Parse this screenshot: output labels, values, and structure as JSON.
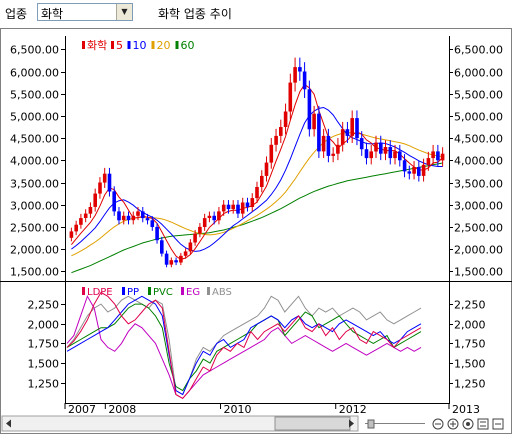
{
  "toolbar": {
    "industry_label": "업종",
    "industry_value": "화학",
    "title": "화학 업종 추이",
    "dropdown_icon": "chevron-down-icon"
  },
  "scroll": {
    "left_icon": "arrow-left-icon",
    "right_icon": "arrow-right-icon",
    "zoom_out_icon": "zoom-out-icon",
    "zoom_in_icon": "zoom-in-icon",
    "reset_icon": "refresh-icon",
    "settings_icon": "settings-icon"
  },
  "chart_data": [
    {
      "type": "candlestick",
      "legend": [
        "화학",
        "5",
        "10",
        "20",
        "60"
      ],
      "legend_colors": [
        "#e00000",
        "#e00000",
        "#0000ff",
        "#e0a000",
        "#008000"
      ],
      "y_ticks": [
        "6,500.00",
        "6,000.00",
        "5,500.00",
        "5,000.00",
        "4,500.00",
        "4,000.00",
        "3,500.00",
        "3,000.00",
        "2,500.00",
        "2,000.00",
        "1,500.00"
      ],
      "y_tick_values": [
        6500,
        6000,
        5500,
        5000,
        4500,
        4000,
        3500,
        3000,
        2500,
        2000,
        1500
      ],
      "ylim": [
        1350,
        6800
      ],
      "up_color": "#e00000",
      "down_color": "#0000ff",
      "closes": [
        2400,
        2550,
        2700,
        2800,
        2950,
        3250,
        3500,
        3700,
        3300,
        2850,
        2650,
        2750,
        2650,
        2750,
        2850,
        2700,
        2650,
        2500,
        2200,
        1900,
        1650,
        1750,
        1700,
        1850,
        1950,
        2150,
        2350,
        2500,
        2700,
        2750,
        2650,
        2850,
        3000,
        2900,
        3000,
        2800,
        3050,
        2950,
        3150,
        3400,
        3650,
        3950,
        4350,
        4550,
        4750,
        5100,
        5750,
        6100,
        6000,
        5600,
        4700,
        5050,
        4200,
        4550,
        4100,
        4150,
        4350,
        4700,
        4550,
        4950,
        4500,
        4250,
        4050,
        4200,
        4400,
        4150,
        4300,
        4050,
        4200,
        4000,
        3750,
        3700,
        3850,
        3650,
        3900,
        4050,
        4200,
        4000,
        4150
      ],
      "ma5": [
        2100,
        2230,
        2360,
        2480,
        2600,
        2760,
        2970,
        3220,
        3380,
        3340,
        3170,
        3060,
        2880,
        2700,
        2710,
        2740,
        2720,
        2690,
        2580,
        2390,
        2190,
        2000,
        1840,
        1770,
        1800,
        1880,
        2010,
        2170,
        2330,
        2490,
        2590,
        2690,
        2800,
        2850,
        2880,
        2870,
        2920,
        2940,
        2980,
        3060,
        3240,
        3420,
        3700,
        3980,
        4250,
        4540,
        4900,
        5250,
        5540,
        5710,
        5630,
        5490,
        5120,
        4820,
        4520,
        4410,
        4270,
        4370,
        4450,
        4570,
        4640,
        4590,
        4460,
        4390,
        4280,
        4260,
        4220,
        4220,
        4220,
        4140,
        4040,
        3940,
        3850,
        3790,
        3780,
        3830,
        3940,
        3960,
        4060
      ],
      "ma10": [
        2000,
        2080,
        2170,
        2270,
        2370,
        2480,
        2620,
        2780,
        2930,
        3040,
        3090,
        3110,
        3060,
        2990,
        2900,
        2830,
        2770,
        2720,
        2650,
        2560,
        2450,
        2340,
        2220,
        2110,
        2030,
        1980,
        1950,
        1960,
        2000,
        2060,
        2140,
        2230,
        2330,
        2430,
        2530,
        2600,
        2680,
        2760,
        2840,
        2920,
        3010,
        3100,
        3230,
        3380,
        3560,
        3780,
        4030,
        4310,
        4580,
        4840,
        5010,
        5110,
        5170,
        5190,
        5130,
        5020,
        4860,
        4710,
        4580,
        4510,
        4470,
        4420,
        4380,
        4370,
        4380,
        4390,
        4380,
        4340,
        4300,
        4240,
        4180,
        4110,
        4050,
        3990,
        3940,
        3900,
        3880,
        3860,
        3860
      ],
      "ma20": [
        1850,
        1900,
        1960,
        2020,
        2090,
        2160,
        2240,
        2330,
        2420,
        2500,
        2570,
        2630,
        2670,
        2700,
        2710,
        2720,
        2720,
        2710,
        2700,
        2680,
        2650,
        2610,
        2560,
        2510,
        2460,
        2420,
        2380,
        2350,
        2330,
        2320,
        2330,
        2350,
        2380,
        2420,
        2470,
        2520,
        2580,
        2640,
        2700,
        2760,
        2830,
        2900,
        2980,
        3070,
        3170,
        3290,
        3430,
        3580,
        3740,
        3900,
        4050,
        4180,
        4300,
        4400,
        4480,
        4540,
        4580,
        4610,
        4620,
        4620,
        4610,
        4590,
        4560,
        4530,
        4500,
        4480,
        4460,
        4440,
        4420,
        4400,
        4370,
        4330,
        4280,
        4230,
        4190,
        4150,
        4120,
        4100,
        4080
      ],
      "ma60": [
        1470,
        1510,
        1550,
        1590,
        1630,
        1680,
        1730,
        1780,
        1830,
        1880,
        1930,
        1980,
        2020,
        2060,
        2100,
        2140,
        2170,
        2200,
        2230,
        2250,
        2270,
        2290,
        2300,
        2310,
        2320,
        2330,
        2340,
        2350,
        2360,
        2370,
        2390,
        2410,
        2430,
        2460,
        2490,
        2520,
        2550,
        2590,
        2630,
        2670,
        2710,
        2760,
        2810,
        2860,
        2910,
        2970,
        3030,
        3090,
        3150,
        3200,
        3250,
        3300,
        3340,
        3380,
        3420,
        3450,
        3480,
        3510,
        3540,
        3560,
        3580,
        3600,
        3620,
        3640,
        3660,
        3680,
        3700,
        3720,
        3740,
        3760,
        3780,
        3800,
        3820,
        3840,
        3860,
        3880,
        3900,
        3920,
        3940
      ]
    },
    {
      "type": "line",
      "series": [
        {
          "name": "LDPE",
          "color": "#e0004a",
          "values": [
            1700,
            1780,
            1900,
            2050,
            2250,
            2400,
            2350,
            2250,
            2100,
            2000,
            2050,
            2150,
            2250,
            2300,
            2200,
            1650,
            1100,
            1050,
            1150,
            1300,
            1450,
            1400,
            1600,
            1700,
            1650,
            1750,
            1700,
            1900,
            1800,
            1900,
            1950,
            2000,
            1900,
            2000,
            2100,
            1950,
            1900,
            2000,
            1850,
            1950,
            1800,
            1900,
            1950,
            1800,
            1750,
            1900,
            1850,
            1800,
            1700,
            1800,
            1850,
            1900,
            1950
          ]
        },
        {
          "name": "PP",
          "color": "#0000ff",
          "values": [
            1650,
            1700,
            1750,
            1800,
            1850,
            1900,
            1950,
            2050,
            2150,
            2250,
            2300,
            2350,
            2300,
            2250,
            2100,
            1600,
            1150,
            1100,
            1300,
            1500,
            1650,
            1600,
            1750,
            1800,
            1700,
            1750,
            1800,
            1950,
            2000,
            2050,
            2100,
            2050,
            1950,
            2050,
            2100,
            2000,
            1950,
            2000,
            1950,
            1900,
            2000,
            2050,
            2000,
            1950,
            1900,
            1850,
            1900,
            1800,
            1750,
            1800,
            1900,
            1950,
            2000
          ]
        },
        {
          "name": "PVC",
          "color": "#008000",
          "values": [
            1700,
            1750,
            1800,
            1850,
            1900,
            1950,
            1950,
            2000,
            2100,
            2200,
            2250,
            2250,
            2200,
            2100,
            1950,
            1500,
            1200,
            1150,
            1300,
            1400,
            1550,
            1500,
            1650,
            1700,
            1750,
            1800,
            1850,
            1900,
            2000,
            2050,
            2100,
            2050,
            1850,
            1950,
            2050,
            2150,
            2100,
            1950,
            2000,
            2050,
            2100,
            2000,
            1900,
            1850,
            1800,
            1750,
            1800,
            1850,
            1700,
            1750,
            1800,
            1850,
            1900
          ]
        },
        {
          "name": "EG",
          "color": "#c000c0",
          "values": [
            1750,
            1850,
            2100,
            2350,
            2200,
            1800,
            1700,
            1650,
            1750,
            1900,
            2000,
            1950,
            1850,
            1750,
            1550,
            1350,
            1100,
            1050,
            1150,
            1250,
            1350,
            1400,
            1450,
            1500,
            1550,
            1600,
            1650,
            1700,
            1750,
            1800,
            1900,
            1950,
            1850,
            1750,
            1800,
            1850,
            1800,
            1750,
            1700,
            1650,
            1700,
            1750,
            1700,
            1650,
            1600,
            1650,
            1700,
            1750,
            1700,
            1650,
            1700,
            1650,
            1700
          ]
        },
        {
          "name": "ABS",
          "color": "#909090",
          "values": [
            1700,
            1800,
            1950,
            2100,
            2200,
            2250,
            2150,
            2200,
            2300,
            2350,
            2300,
            2250,
            2200,
            2300,
            2250,
            1800,
            1150,
            1100,
            1300,
            1550,
            1700,
            1650,
            1750,
            1850,
            1900,
            1950,
            2000,
            2050,
            2100,
            2200,
            2350,
            2300,
            2150,
            2250,
            2350,
            2200,
            2100,
            2200,
            2150,
            2200,
            2100,
            2150,
            2200,
            2150,
            2050,
            2100,
            2150,
            2050,
            2000,
            2050,
            2100,
            2150,
            2200
          ]
        }
      ],
      "y_ticks": [
        "2,250",
        "2,000",
        "1,750",
        "1,500",
        "1,250"
      ],
      "y_tick_values": [
        2250,
        2000,
        1750,
        1500,
        1250
      ],
      "ylim": [
        1030,
        2430
      ],
      "x_labels": [
        "2007",
        "2008",
        "2010",
        "2012",
        "2013"
      ],
      "x_label_positions": [
        0,
        0.105,
        0.405,
        0.705,
        1.0
      ]
    }
  ]
}
